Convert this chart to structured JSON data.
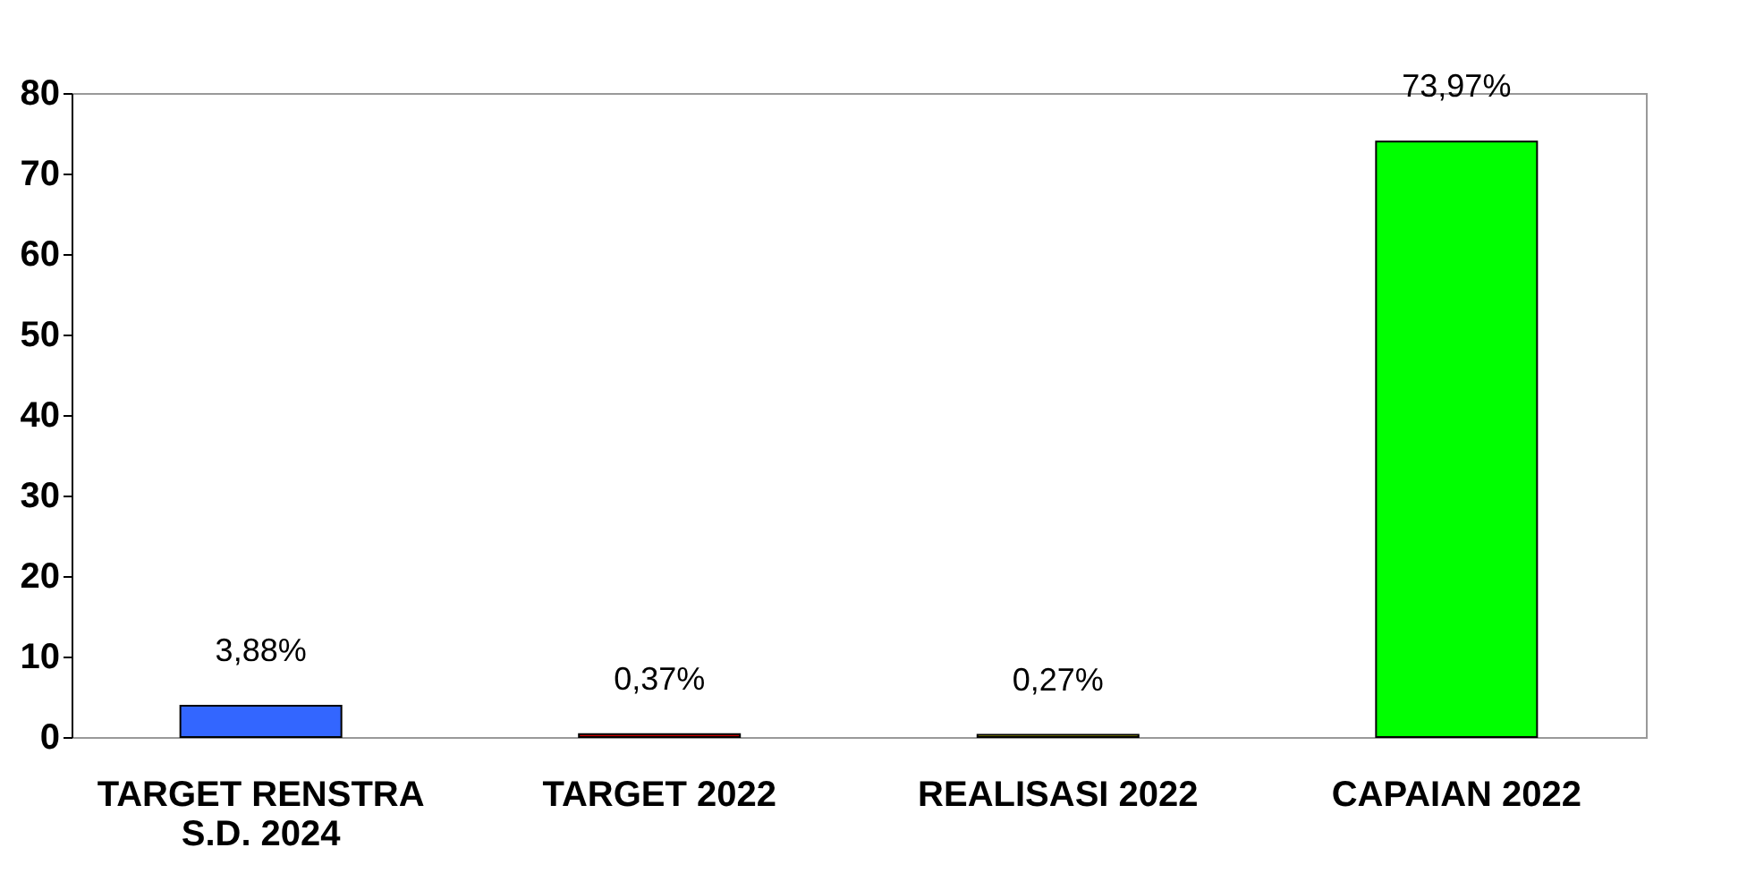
{
  "chart_data": {
    "type": "bar",
    "categories": [
      "TARGET RENSTRA S.D. 2024",
      "TARGET 2022",
      "REALISASI 2022",
      "CAPAIAN 2022"
    ],
    "values": [
      3.88,
      0.37,
      0.27,
      73.97
    ],
    "colors": [
      "#3366ff",
      "#cc0000",
      "#cccc00",
      "#00ff00"
    ],
    "value_labels": [
      "3,88%",
      "0,37%",
      "0,27%",
      "73,97%"
    ],
    "ylim": [
      0,
      80
    ],
    "yticks": [
      0,
      10,
      20,
      30,
      40,
      50,
      60,
      70,
      80
    ],
    "grid": false,
    "legend": false
  }
}
